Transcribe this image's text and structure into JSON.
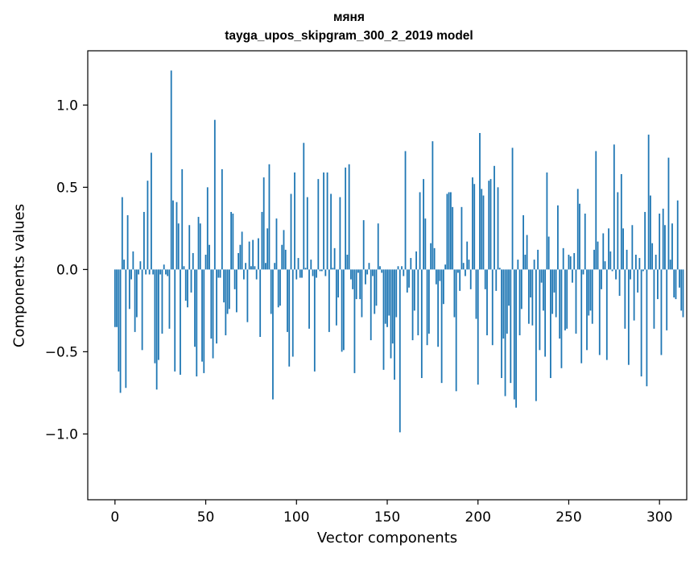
{
  "chart_data": {
    "type": "bar",
    "title": "мяня",
    "subtitle": "tayga_upos_skipgram_300_2_2019 model",
    "xlabel": "Vector components",
    "ylabel": "Components values",
    "xlim": [
      -15,
      315
    ],
    "ylim": [
      -1.4,
      1.33
    ],
    "xticks": [
      0,
      50,
      100,
      150,
      200,
      250,
      300
    ],
    "xtick_labels": [
      "0",
      "50",
      "100",
      "150",
      "200",
      "250",
      "300"
    ],
    "yticks": [
      -1.0,
      -0.5,
      0.0,
      0.5,
      1.0
    ],
    "ytick_labels": [
      "−1.0",
      "−0.5",
      "0.0",
      "0.5",
      "1.0"
    ],
    "grid": false,
    "bar_color": "#1f77b4",
    "x_start": 0,
    "values": [
      -0.35,
      -0.35,
      -0.62,
      -0.75,
      0.44,
      0.06,
      -0.72,
      0.33,
      -0.24,
      -0.06,
      0.11,
      -0.38,
      -0.29,
      -0.03,
      0.05,
      -0.49,
      0.35,
      -0.03,
      0.54,
      -0.03,
      0.71,
      -0.03,
      -0.57,
      -0.73,
      -0.55,
      -0.03,
      -0.39,
      0.03,
      -0.03,
      -0.04,
      -0.36,
      1.21,
      0.42,
      -0.62,
      0.41,
      0.28,
      -0.64,
      0.61,
      0.02,
      -0.19,
      -0.23,
      0.27,
      -0.14,
      0.1,
      -0.47,
      -0.65,
      0.32,
      0.28,
      -0.56,
      -0.63,
      0.09,
      0.5,
      0.15,
      -0.42,
      -0.54,
      0.91,
      -0.45,
      -0.05,
      -0.05,
      0.61,
      -0.2,
      -0.4,
      -0.27,
      -0.24,
      0.35,
      0.34,
      -0.12,
      -0.26,
      0.1,
      0.15,
      0.23,
      -0.06,
      0.04,
      -0.32,
      0.17,
      0.02,
      0.18,
      0.02,
      -0.06,
      0.19,
      -0.41,
      0.35,
      0.56,
      0.04,
      0.25,
      0.64,
      -0.27,
      -0.79,
      0.04,
      0.31,
      -0.23,
      -0.22,
      0.15,
      0.24,
      0.12,
      -0.38,
      -0.59,
      0.46,
      -0.53,
      0.59,
      -0.06,
      0.07,
      -0.05,
      -0.05,
      0.77,
      0.01,
      0.44,
      -0.36,
      0.06,
      -0.04,
      -0.62,
      -0.05,
      0.55,
      -0.01,
      -0.01,
      0.59,
      -0.04,
      0.59,
      -0.38,
      0.46,
      0.01,
      0.13,
      -0.34,
      -0.17,
      0.44,
      -0.5,
      -0.49,
      0.62,
      0.09,
      0.64,
      -0.06,
      -0.12,
      -0.63,
      -0.18,
      -0.02,
      -0.18,
      -0.29,
      0.3,
      -0.09,
      -0.03,
      0.04,
      -0.43,
      -0.04,
      -0.27,
      -0.22,
      0.28,
      0.02,
      -0.02,
      -0.61,
      -0.33,
      -0.35,
      -0.28,
      -0.54,
      -0.45,
      -0.67,
      -0.29,
      0.02,
      -0.99,
      0.02,
      -0.04,
      0.72,
      -0.14,
      -0.11,
      0.07,
      -0.43,
      -0.25,
      0.11,
      -0.4,
      0.47,
      -0.66,
      0.55,
      0.31,
      -0.46,
      -0.39,
      0.16,
      0.78,
      0.13,
      -0.09,
      -0.47,
      -0.07,
      -0.69,
      -0.21,
      0.03,
      0.46,
      0.47,
      0.47,
      0.38,
      -0.29,
      -0.74,
      -0.02,
      -0.13,
      0.38,
      0.04,
      -0.04,
      0.17,
      0.06,
      -0.12,
      0.56,
      0.52,
      -0.3,
      -0.7,
      0.83,
      0.49,
      0.45,
      -0.12,
      -0.4,
      0.54,
      0.55,
      -0.46,
      0.63,
      -0.13,
      0.5,
      0.01,
      -0.66,
      -0.42,
      -0.77,
      -0.39,
      -0.22,
      -0.69,
      0.74,
      -0.79,
      -0.84,
      0.06,
      -0.4,
      -0.24,
      0.33,
      0.09,
      0.21,
      -0.33,
      -0.17,
      -0.34,
      0.06,
      -0.8,
      0.12,
      -0.49,
      -0.08,
      -0.25,
      -0.53,
      0.59,
      0.2,
      -0.66,
      -0.27,
      -0.14,
      -0.29,
      0.39,
      -0.42,
      -0.6,
      0.13,
      -0.37,
      -0.36,
      0.09,
      0.08,
      -0.08,
      0.1,
      -0.39,
      0.49,
      0.4,
      -0.57,
      -0.03,
      0.34,
      -0.49,
      -0.28,
      -0.25,
      -0.33,
      0.12,
      0.72,
      0.17,
      -0.52,
      -0.12,
      0.22,
      0.05,
      -0.55,
      0.25,
      0.11,
      -0.01,
      0.76,
      -0.06,
      0.47,
      -0.16,
      0.58,
      0.25,
      -0.36,
      0.12,
      -0.58,
      -0.06,
      0.27,
      -0.31,
      0.09,
      -0.14,
      0.07,
      -0.65,
      -0.01,
      0.35,
      -0.71,
      0.82,
      0.45,
      0.16,
      -0.36,
      0.09,
      -0.18,
      0.34,
      -0.52,
      0.37,
      0.27,
      -0.37,
      0.68,
      0.06,
      0.28,
      -0.17,
      -0.18,
      0.42,
      -0.11,
      -0.25,
      -0.29
    ]
  }
}
